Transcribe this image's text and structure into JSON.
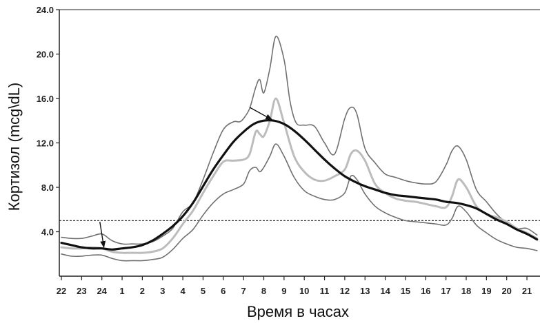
{
  "chart_data": {
    "type": "line",
    "title": "",
    "xlabel": "Время в часах",
    "ylabel": "Кортизол (mcg\\dL)",
    "ylim": [
      0,
      24
    ],
    "yticks": [
      "4.0",
      "8.0",
      "12.0",
      "16.0",
      "20.0",
      "24.0"
    ],
    "ytick_values": [
      4,
      8,
      12,
      16,
      20,
      24
    ],
    "categories": [
      "22",
      "23",
      "24",
      "1",
      "2",
      "3",
      "4",
      "5",
      "6",
      "7",
      "8",
      "9",
      "10",
      "11",
      "12",
      "13",
      "14",
      "15",
      "16",
      "17",
      "18",
      "19",
      "20",
      "21"
    ],
    "threshold": 5,
    "grid": false,
    "legend": "none",
    "colors": {
      "upper": "#707070",
      "lower": "#707070",
      "median": "#bcbcbc",
      "fit": "#111111",
      "threshold": "#333333"
    },
    "series": [
      {
        "key": "upper",
        "x": [
          -2,
          -1.5,
          -1,
          -0.5,
          0,
          0.5,
          1,
          1.5,
          2,
          2.5,
          3,
          3.5,
          4,
          4.5,
          5,
          5.5,
          6,
          6.5,
          6.8,
          7,
          7.3,
          7.6,
          7.8,
          8,
          8.3,
          8.6,
          9,
          9.3,
          9.6,
          10,
          10.5,
          11,
          11.5,
          12,
          12.3,
          12.6,
          13,
          13.5,
          14,
          14.5,
          15,
          15.5,
          16,
          16.5,
          17,
          17.3,
          17.6,
          18,
          18.5,
          19,
          19.5,
          20,
          20.5,
          21,
          21.5
        ],
        "y": [
          3.5,
          3.4,
          3.4,
          3.6,
          3.8,
          3.2,
          2.9,
          2.9,
          2.9,
          3.1,
          3.6,
          4.3,
          5.8,
          6.6,
          8.7,
          11.1,
          13.2,
          13.9,
          13.9,
          14.2,
          15.1,
          17.0,
          17.7,
          16.5,
          18.7,
          21.6,
          19.5,
          15.7,
          13.8,
          13.6,
          13.5,
          12.0,
          11.0,
          14.2,
          15.2,
          14.6,
          11.5,
          10.2,
          9.2,
          8.9,
          8.6,
          8.4,
          8.3,
          8.5,
          10.0,
          11.3,
          11.7,
          10.5,
          7.8,
          6.7,
          5.6,
          4.8,
          4.3,
          4.3,
          3.7
        ]
      },
      {
        "key": "median",
        "x": [
          -2,
          -1.5,
          -1,
          -0.5,
          0,
          0.5,
          1,
          1.5,
          2,
          2.5,
          3,
          3.5,
          4,
          4.5,
          5,
          5.5,
          6,
          6.5,
          7,
          7.3,
          7.6,
          7.8,
          8,
          8.3,
          8.6,
          9,
          9.5,
          10,
          10.5,
          11,
          11.5,
          12,
          12.3,
          12.6,
          13,
          13.5,
          14,
          14.5,
          15,
          15.5,
          16,
          16.5,
          17,
          17.3,
          17.6,
          18,
          18.5,
          19,
          19.5,
          20,
          20.5,
          21,
          21.5
        ],
        "y": [
          2.6,
          2.5,
          2.5,
          2.6,
          2.5,
          2.2,
          2.1,
          2.1,
          2.1,
          2.2,
          2.5,
          3.4,
          4.7,
          5.9,
          7.5,
          9.0,
          10.3,
          10.4,
          10.5,
          11.0,
          13.0,
          12.8,
          12.6,
          14.0,
          16.0,
          13.8,
          10.8,
          9.4,
          8.7,
          8.6,
          9.0,
          9.6,
          11.0,
          11.3,
          10.4,
          8.3,
          7.5,
          7.0,
          6.8,
          6.7,
          6.5,
          6.3,
          6.2,
          7.2,
          8.7,
          8.0,
          6.3,
          5.6,
          5.3,
          4.9,
          4.3,
          3.9,
          3.4
        ]
      },
      {
        "key": "lower",
        "x": [
          -2,
          -1.5,
          -1,
          -0.5,
          0,
          0.5,
          1,
          1.5,
          2,
          2.5,
          3,
          3.5,
          4,
          4.5,
          5,
          5.5,
          6,
          6.5,
          7,
          7.3,
          7.6,
          7.8,
          8,
          8.3,
          8.6,
          9,
          9.5,
          10,
          10.5,
          11,
          11.5,
          12,
          12.3,
          12.6,
          13,
          13.5,
          14,
          14.5,
          15,
          15.5,
          16,
          16.5,
          17,
          17.3,
          17.6,
          18,
          18.5,
          19,
          19.5,
          20,
          20.5,
          21,
          21.5
        ],
        "y": [
          2.0,
          1.8,
          1.8,
          1.9,
          1.9,
          1.6,
          1.4,
          1.4,
          1.4,
          1.5,
          1.7,
          2.4,
          3.4,
          4.2,
          5.5,
          6.6,
          7.4,
          7.8,
          8.3,
          9.5,
          9.8,
          9.4,
          9.8,
          10.8,
          11.9,
          10.8,
          8.9,
          7.7,
          7.2,
          6.9,
          6.9,
          7.5,
          9.0,
          8.7,
          7.4,
          6.3,
          5.7,
          5.3,
          5.0,
          4.9,
          4.8,
          4.7,
          4.6,
          5.2,
          6.3,
          5.8,
          4.6,
          3.9,
          3.3,
          2.9,
          2.6,
          2.5,
          2.3
        ]
      },
      {
        "key": "fit",
        "x": [
          -2,
          -1.5,
          -1,
          -0.5,
          0,
          0.5,
          1,
          1.5,
          2,
          2.5,
          3,
          3.5,
          4,
          4.5,
          5,
          5.5,
          6,
          6.5,
          7,
          7.5,
          8,
          8.5,
          9,
          9.5,
          10,
          10.5,
          11,
          11.5,
          12,
          12.5,
          13,
          13.5,
          14,
          14.5,
          15,
          15.5,
          16,
          16.5,
          17,
          17.5,
          18,
          18.5,
          19,
          19.5,
          20,
          20.5,
          21,
          21.5
        ],
        "y": [
          3.0,
          2.8,
          2.6,
          2.5,
          2.5,
          2.4,
          2.5,
          2.6,
          2.8,
          3.2,
          3.8,
          4.5,
          5.4,
          6.6,
          8.1,
          9.6,
          10.9,
          12.1,
          13.0,
          13.7,
          14.0,
          14.0,
          13.7,
          13.1,
          12.3,
          11.4,
          10.5,
          9.7,
          9.0,
          8.5,
          8.1,
          7.8,
          7.5,
          7.3,
          7.2,
          7.1,
          7.0,
          6.9,
          6.7,
          6.6,
          6.4,
          6.1,
          5.6,
          5.1,
          4.7,
          4.2,
          3.8,
          3.3
        ]
      }
    ],
    "annotations": [
      {
        "type": "arrow",
        "from": [
          7.3,
          15.2
        ],
        "to": [
          8.4,
          14.1
        ]
      },
      {
        "type": "arrow",
        "from": [
          -0.1,
          4.9
        ],
        "to": [
          0.1,
          2.6
        ]
      }
    ]
  }
}
